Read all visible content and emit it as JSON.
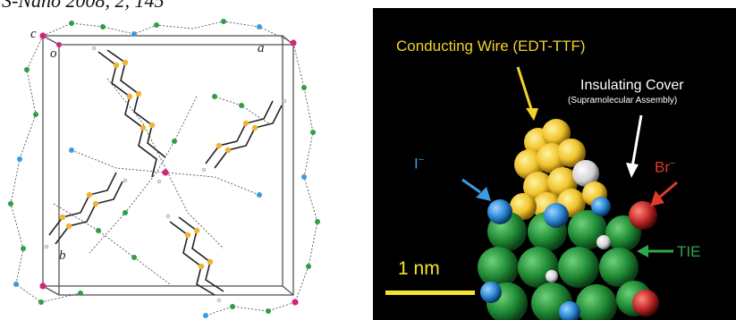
{
  "header": {
    "citation": "S-Nano 2008, 2, 145"
  },
  "crystal": {
    "axis_c": "c",
    "axis_o": "o",
    "axis_a": "a",
    "axis_b": "b"
  },
  "model": {
    "wire_label": "Conducting Wire (EDT-TTF)",
    "cover_label": "Insulating Cover",
    "cover_sub": "(Supramolecular Assembly)",
    "iodide_label": "I",
    "iodide_charge": "−",
    "bromide_label": "Br",
    "bromide_charge": "−",
    "tie_label": "TIE",
    "scale_label": "1 nm"
  },
  "colors": {
    "yellow": "#f2d22a",
    "green": "#2f9e44",
    "blue": "#3a9be0",
    "red": "#c0282a",
    "magenta": "#d4257a"
  }
}
